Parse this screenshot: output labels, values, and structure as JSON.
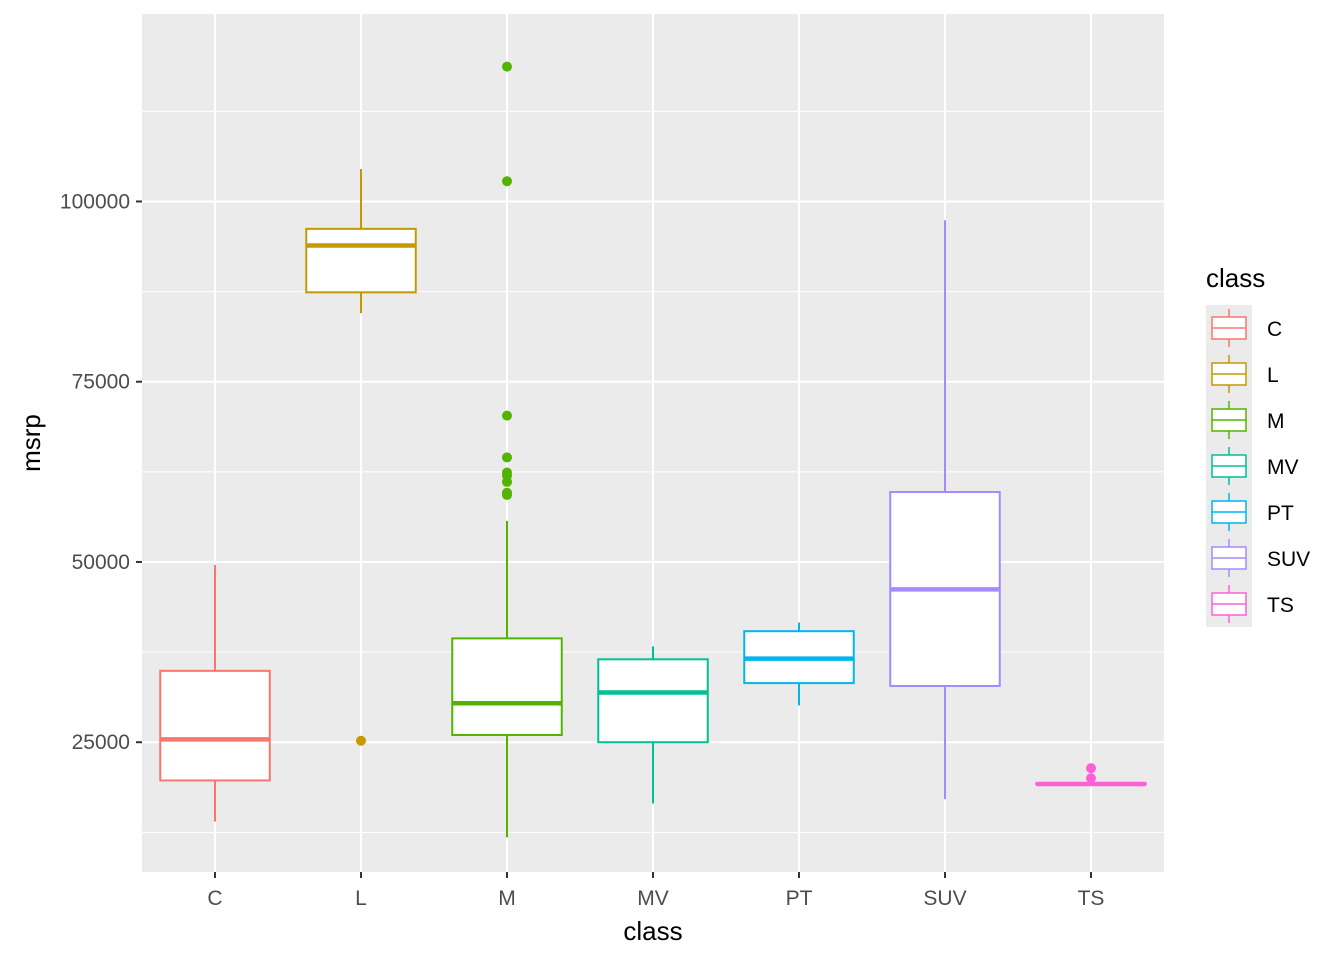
{
  "chart_data": {
    "type": "boxplot",
    "xlabel": "class",
    "ylabel": "msrp",
    "ylim": [
      7000,
      126000
    ],
    "yticks": [
      25000,
      50000,
      75000,
      100000
    ],
    "grid": true,
    "legend": {
      "title": "class",
      "position": "right"
    },
    "categories": [
      "C",
      "L",
      "M",
      "MV",
      "PT",
      "SUV",
      "TS"
    ],
    "colors": [
      "#F8766D",
      "#C49A00",
      "#53B400",
      "#00C094",
      "#00B6EB",
      "#A58AFF",
      "#FB61D7"
    ],
    "boxes": [
      {
        "name": "C",
        "whisker_low": 14000,
        "q1": 19700,
        "median": 25400,
        "q3": 34900,
        "whisker_high": 49600,
        "outliers": []
      },
      {
        "name": "L",
        "whisker_low": 84500,
        "q1": 87400,
        "median": 93900,
        "q3": 96200,
        "whisker_high": 104500,
        "outliers": [
          25200
        ]
      },
      {
        "name": "M",
        "whisker_low": 11800,
        "q1": 26000,
        "median": 30400,
        "q3": 39400,
        "whisker_high": 55700,
        "outliers": [
          59300,
          59600,
          61100,
          62000,
          62400,
          64500,
          70300,
          102800,
          118700
        ]
      },
      {
        "name": "MV",
        "whisker_low": 16500,
        "q1": 25000,
        "median": 31900,
        "q3": 36500,
        "whisker_high": 38300,
        "outliers": []
      },
      {
        "name": "PT",
        "whisker_low": 30100,
        "q1": 33200,
        "median": 36600,
        "q3": 40400,
        "whisker_high": 41600,
        "outliers": []
      },
      {
        "name": "SUV",
        "whisker_low": 17100,
        "q1": 32800,
        "median": 46200,
        "q3": 59700,
        "whisker_high": 97400,
        "outliers": []
      },
      {
        "name": "TS",
        "whisker_low": 19200,
        "q1": 19200,
        "median": 19200,
        "q3": 19300,
        "whisker_high": 19300,
        "outliers": [
          20000,
          21400
        ]
      }
    ]
  }
}
